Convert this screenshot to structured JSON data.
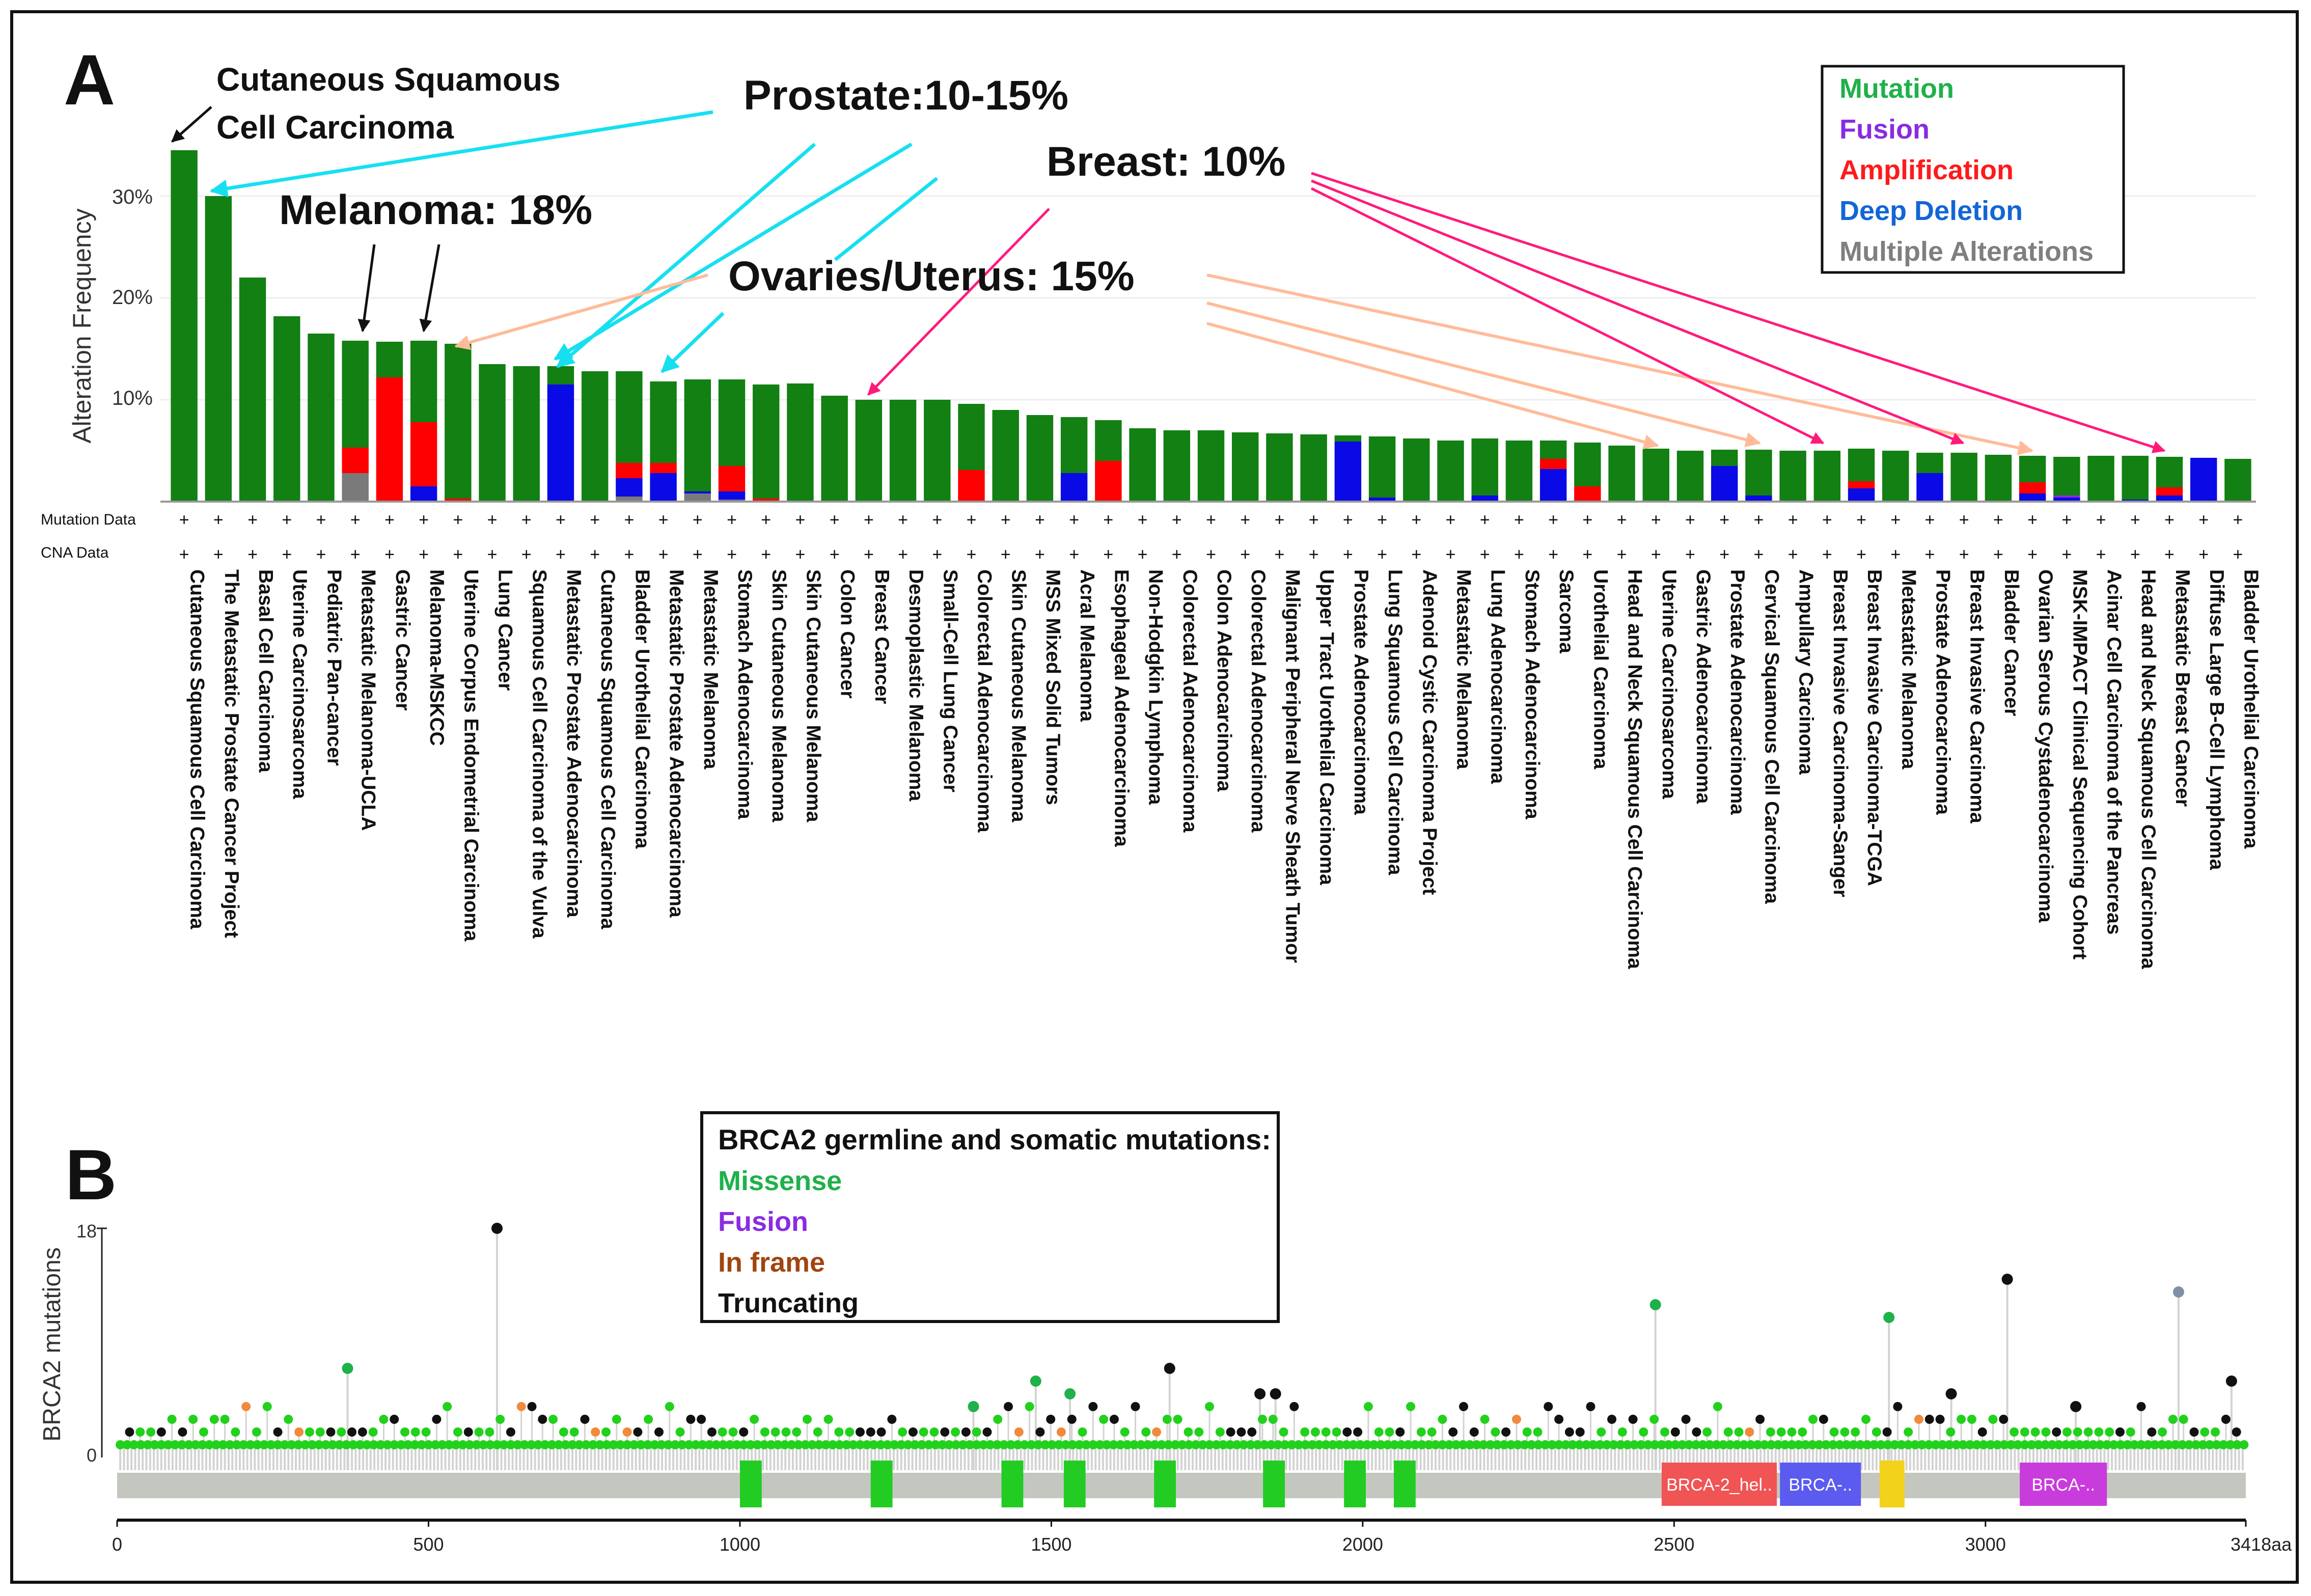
{
  "panel_a": {
    "panel_label": "A",
    "ylabel": "Alteration Frequency",
    "yticks": [
      "30%",
      "20%",
      "10%"
    ],
    "row_labels": {
      "mutation": "Mutation Data",
      "cna": "CNA Data"
    },
    "row_marker": "+",
    "legend": [
      {
        "label": "Mutation",
        "color": "#1fb14a"
      },
      {
        "label": "Fusion",
        "color": "#8a2be2"
      },
      {
        "label": "Amplification",
        "color": "#ff1a1a"
      },
      {
        "label": "Deep Deletion",
        "color": "#1266d6"
      },
      {
        "label": "Multiple Alterations",
        "color": "#7f7f7f"
      }
    ],
    "annotations": {
      "cutaneous_1": "Cutaneous Squamous",
      "cutaneous_2": "Cell Carcinoma",
      "prostate": "Prostate:10-15%",
      "melanoma": "Melanoma: 18%",
      "breast": "Breast: 10%",
      "ovaries": "Ovaries/Uterus: 15%"
    }
  },
  "chart_data": [
    {
      "type": "bar",
      "ylabel": "Alteration Frequency",
      "ylim": [
        0,
        36
      ],
      "unit": "%",
      "stack_order": [
        "multiple",
        "deep_deletion",
        "amplification",
        "fusion",
        "mutation"
      ],
      "series_colors": {
        "mutation": "#128012",
        "fusion": "#8a2be2",
        "amplification": "#ff0000",
        "deep_deletion": "#0a0ae6",
        "multiple": "#7a7a7a"
      },
      "categories": [
        "Cutaneous Squamous Cell Carcinoma",
        "The Metastatic Prostate Cancer Project",
        "Basal Cell Carcinoma",
        "Uterine Carcinosarcoma",
        "Pediatric Pan-cancer",
        "Metastatic Melanoma-UCLA",
        "Gastric Cancer",
        "Melanoma-MSKCC",
        "Uterine Corpus Endometrial Carcinoma",
        "Lung Cancer",
        "Squamous Cell Carcinoma of the Vulva",
        "Metastatic Prostate Adenocarcinoma",
        "Cutaneous Squamous Cell Carcinoma",
        "Bladder Urothelial Carcinoma",
        "Metastatic Prostate Adenocarcinoma",
        "Metastatic Melanoma",
        "Stomach Adenocarcinoma",
        "Skin Cutaneous Melanoma",
        "Skin Cutaneous Melanoma",
        "Colon Cancer",
        "Breast Cancer",
        "Desmoplastic Melanoma",
        "Small-Cell Lung Cancer",
        "Colorectal Adenocarcinoma",
        "Skin Cutaneous Melanoma",
        "MSS Mixed Solid Tumors",
        "Acral Melanoma",
        "Esophageal Adenocarcinoma",
        "Non-Hodgkin Lymphoma",
        "Colorectal Adenocarcinoma",
        "Colon Adenocarcinoma",
        "Colorectal Adenocarcinoma",
        "Malignant Peripheral Nerve Sheath Tumor",
        "Upper Tract Urothelial Carcinoma",
        "Prostate Adenocarcinoma",
        "Lung Squamous Cell Carcinoma",
        "Adenoid Cystic Carcinoma Project",
        "Metastatic Melanoma",
        "Lung Adenocarcinoma",
        "Stomach Adenocarcinoma",
        "Sarcoma",
        "Urothelial Carcinoma",
        "Head and Neck Squamous Cell Carcinoma",
        "Uterine Carcinosarcoma",
        "Gastric Adenocarcinoma",
        "Prostate Adenocarcinoma",
        "Cervical Squamous Cell Carcinoma",
        "Ampullary Carcinoma",
        "Breast Invasive Carcinoma-Sanger",
        "Breast Invasive Carcinoma-TCGA",
        "Metastatic Melanoma",
        "Prostate Adenocarcinoma",
        "Breast Invasive Carcinoma",
        "Bladder Cancer",
        "Ovarian Serous Cystadenocarcinoma",
        "MSK-IMPACT Clinical Sequencing Cohort",
        "Acinar Cell Carcinoma of the Pancreas",
        "Head and Neck Squamous Cell Carcinoma",
        "Metastatic Breast Cancer",
        "Diffuse Large B-Cell Lymphoma",
        "Bladder Urothelial Carcinoma"
      ],
      "series": [
        {
          "name": "Mutation",
          "key": "mutation",
          "values": [
            34.5,
            30.0,
            22.0,
            18.2,
            16.5,
            10.5,
            3.5,
            8.0,
            15.2,
            13.5,
            13.3,
            1.8,
            12.8,
            9.0,
            8.0,
            11.0,
            8.5,
            11.2,
            11.6,
            10.4,
            10.0,
            10.0,
            10.0,
            6.5,
            9.0,
            8.5,
            5.5,
            4.0,
            7.2,
            7.0,
            7.0,
            6.8,
            6.7,
            6.6,
            0.6,
            6.0,
            6.2,
            6.0,
            5.6,
            6.0,
            1.8,
            4.3,
            5.5,
            5.2,
            5.0,
            1.6,
            4.5,
            5.0,
            5.0,
            3.2,
            5.0,
            2.0,
            4.8,
            4.6,
            2.6,
            3.8,
            4.5,
            4.3,
            3.0,
            0.0,
            4.2
          ]
        },
        {
          "name": "Fusion",
          "key": "fusion",
          "values": [
            0,
            0,
            0,
            0,
            0,
            0,
            0,
            0,
            0,
            0,
            0,
            0,
            0,
            0,
            0,
            0,
            0,
            0,
            0,
            0,
            0,
            0,
            0,
            0,
            0,
            0,
            0,
            0,
            0,
            0,
            0,
            0,
            0,
            0,
            0,
            0,
            0,
            0,
            0,
            0,
            0,
            0,
            0,
            0,
            0,
            0,
            0,
            0,
            0,
            0,
            0,
            0,
            0,
            0,
            0,
            0.2,
            0,
            0,
            0,
            0,
            0
          ]
        },
        {
          "name": "Amplification",
          "key": "amplification",
          "values": [
            0,
            0,
            0,
            0,
            0,
            2.5,
            12.2,
            6.3,
            0.3,
            0,
            0,
            0,
            0,
            1.5,
            1.0,
            0,
            2.5,
            0.3,
            0,
            0,
            0,
            0,
            0,
            3.0,
            0,
            0,
            0,
            4.0,
            0,
            0,
            0,
            0,
            0,
            0,
            0,
            0,
            0,
            0,
            0,
            0,
            1.0,
            1.5,
            0,
            0,
            0,
            0,
            0,
            0,
            0,
            0.7,
            0,
            0,
            0,
            0,
            1.1,
            0,
            0,
            0,
            0.8,
            0,
            0
          ]
        },
        {
          "name": "Deep Deletion",
          "key": "deep_deletion",
          "values": [
            0,
            0,
            0,
            0,
            0,
            0,
            0,
            1.5,
            0,
            0,
            0,
            11.5,
            0,
            1.8,
            2.8,
            0.2,
            0.8,
            0,
            0,
            0,
            0,
            0,
            0,
            0.1,
            0,
            0,
            2.8,
            0,
            0,
            0,
            0,
            0,
            0,
            0,
            5.9,
            0.4,
            0,
            0,
            0.6,
            0,
            3.2,
            0,
            0,
            0,
            0,
            3.5,
            0.6,
            0,
            0,
            1.3,
            0,
            2.8,
            0,
            0,
            0.8,
            0.4,
            0,
            0.2,
            0.6,
            4.3,
            0
          ]
        },
        {
          "name": "Multiple Alterations",
          "key": "multiple",
          "values": [
            0,
            0,
            0,
            0,
            0,
            2.8,
            0,
            0,
            0,
            0,
            0,
            0,
            0,
            0.5,
            0,
            0.8,
            0.2,
            0,
            0,
            0,
            0,
            0,
            0,
            0,
            0,
            0,
            0,
            0,
            0,
            0,
            0,
            0,
            0,
            0,
            0,
            0,
            0,
            0,
            0,
            0,
            0,
            0,
            0,
            0,
            0,
            0,
            0,
            0,
            0,
            0,
            0,
            0,
            0,
            0,
            0,
            0,
            0,
            0,
            0,
            0,
            0
          ]
        }
      ]
    },
    {
      "type": "scatter",
      "subtype": "lollipop",
      "ylabel": "BRCA2 mutations",
      "xlim": [
        0,
        3418
      ],
      "ylim": [
        0,
        18
      ],
      "x_ticks": [
        "0",
        "500",
        "1000",
        "1500",
        "2000",
        "2500",
        "3000",
        "3418aa"
      ],
      "x_tick_values": [
        0,
        500,
        1000,
        1500,
        2000,
        2500,
        3000,
        3418
      ],
      "y_ticks": [
        "0",
        "18"
      ],
      "legend_title": "BRCA2 germline and somatic mutations:",
      "legend": [
        {
          "label": "Missense",
          "color": "#1fb14a"
        },
        {
          "label": "Fusion",
          "color": "#8a2be2"
        },
        {
          "label": "In frame",
          "color": "#a0450f"
        },
        {
          "label": "Truncating",
          "color": "#111111"
        }
      ],
      "highlighted_points": [
        {
          "x": 610,
          "y": 18,
          "type": "Truncating"
        },
        {
          "x": 370,
          "y": 7,
          "type": "Missense"
        },
        {
          "x": 1690,
          "y": 7,
          "type": "Truncating"
        },
        {
          "x": 2470,
          "y": 12,
          "type": "Missense"
        },
        {
          "x": 2845,
          "y": 11,
          "type": "Missense"
        },
        {
          "x": 3035,
          "y": 14,
          "type": "Truncating"
        },
        {
          "x": 3310,
          "y": 13,
          "type": "Fusion"
        },
        {
          "x": 3395,
          "y": 6,
          "type": "Truncating"
        },
        {
          "x": 1375,
          "y": 4,
          "type": "Missense"
        },
        {
          "x": 1475,
          "y": 6,
          "type": "Missense"
        },
        {
          "x": 1530,
          "y": 5,
          "type": "Missense"
        },
        {
          "x": 1835,
          "y": 5,
          "type": "Truncating"
        },
        {
          "x": 1860,
          "y": 5,
          "type": "Truncating"
        },
        {
          "x": 2945,
          "y": 5,
          "type": "Truncating"
        },
        {
          "x": 3145,
          "y": 4,
          "type": "Truncating"
        }
      ],
      "domains": [
        {
          "start": 1000,
          "end": 1035,
          "color": "#22cc22",
          "label": ""
        },
        {
          "start": 1210,
          "end": 1245,
          "color": "#22cc22",
          "label": ""
        },
        {
          "start": 1420,
          "end": 1455,
          "color": "#22cc22",
          "label": ""
        },
        {
          "start": 1520,
          "end": 1555,
          "color": "#22cc22",
          "label": ""
        },
        {
          "start": 1665,
          "end": 1700,
          "color": "#22cc22",
          "label": ""
        },
        {
          "start": 1840,
          "end": 1875,
          "color": "#22cc22",
          "label": ""
        },
        {
          "start": 1970,
          "end": 2005,
          "color": "#22cc22",
          "label": ""
        },
        {
          "start": 2050,
          "end": 2085,
          "color": "#22cc22",
          "label": ""
        },
        {
          "start": 2480,
          "end": 2665,
          "color": "#f05454",
          "label": "BRCA-2_hel.."
        },
        {
          "start": 2670,
          "end": 2800,
          "color": "#5b5bf0",
          "label": "BRCA-.."
        },
        {
          "start": 2830,
          "end": 2870,
          "color": "#f2d21b",
          "label": ""
        },
        {
          "start": 3055,
          "end": 3195,
          "color": "#c93cdc",
          "label": "BRCA-.."
        }
      ]
    }
  ]
}
